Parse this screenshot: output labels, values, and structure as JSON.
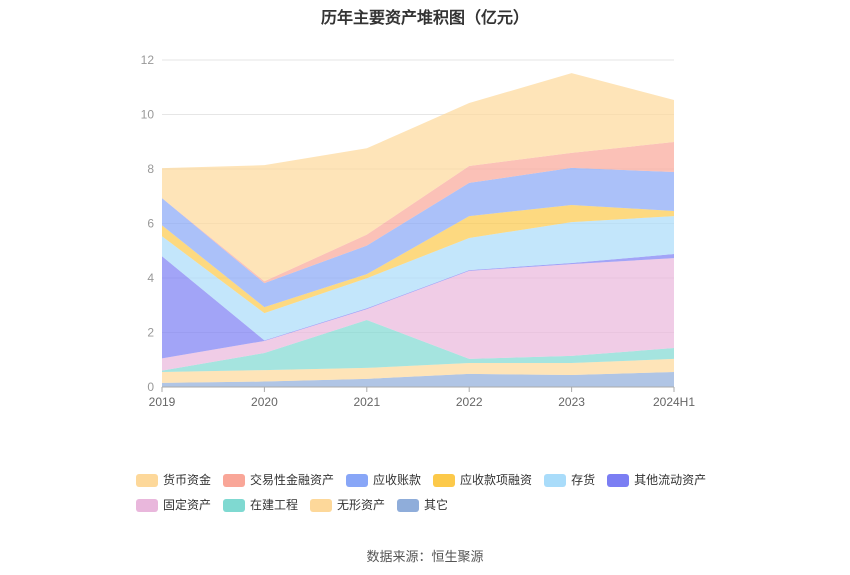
{
  "chart_data": {
    "type": "area",
    "stacked": true,
    "title": "历年主要资产堆积图（亿元）",
    "xlabel": "",
    "ylabel": "",
    "categories": [
      "2019",
      "2020",
      "2021",
      "2022",
      "2023",
      "2024H1"
    ],
    "yticks": [
      0,
      2,
      4,
      6,
      8,
      10,
      12
    ],
    "ylim": [
      0,
      12
    ],
    "grid": true,
    "legend": "bottom",
    "series": [
      {
        "name": "货币资金",
        "color": "#fdd89a",
        "values": [
          1.1,
          4.26,
          3.17,
          2.31,
          2.93,
          1.54
        ]
      },
      {
        "name": "交易性金融资产",
        "color": "#f9a698",
        "values": [
          0.0,
          0.07,
          0.4,
          0.62,
          0.55,
          1.1
        ]
      },
      {
        "name": "应收账款",
        "color": "#88a6f7",
        "values": [
          1.0,
          0.88,
          1.05,
          1.22,
          1.36,
          1.43
        ]
      },
      {
        "name": "应收款项融资",
        "color": "#fcc94a",
        "values": [
          0.4,
          0.22,
          0.15,
          0.8,
          0.63,
          0.19
        ]
      },
      {
        "name": "存货",
        "color": "#a9dcfa",
        "values": [
          0.73,
          1.0,
          1.1,
          1.18,
          1.5,
          1.39
        ]
      },
      {
        "name": "其他流动资产",
        "color": "#7b7ef3",
        "values": [
          3.75,
          0.02,
          0.03,
          0.03,
          0.04,
          0.15
        ]
      },
      {
        "name": "固定资产",
        "color": "#e9b7dc",
        "values": [
          0.45,
          0.44,
          0.4,
          3.23,
          3.37,
          3.3
        ]
      },
      {
        "name": "在建工程",
        "color": "#7fd9d1",
        "values": [
          0.05,
          0.63,
          1.76,
          0.15,
          0.26,
          0.4
        ]
      },
      {
        "name": "无形资产",
        "color": "#fdd89a",
        "values": [
          0.4,
          0.42,
          0.4,
          0.4,
          0.44,
          0.48
        ]
      },
      {
        "name": "其它",
        "color": "#8fadda",
        "values": [
          0.15,
          0.2,
          0.3,
          0.48,
          0.44,
          0.55
        ]
      }
    ]
  },
  "source": "数据来源：恒生聚源"
}
